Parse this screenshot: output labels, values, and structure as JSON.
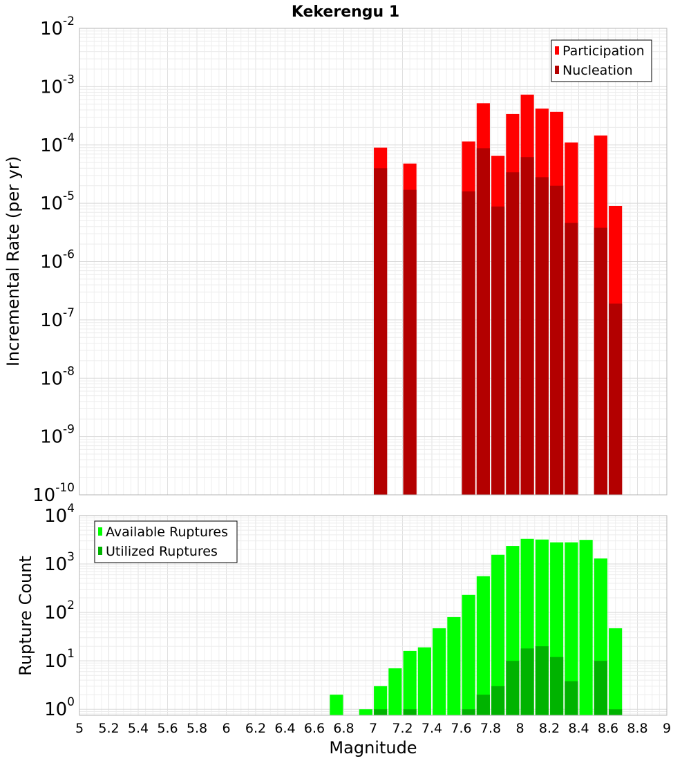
{
  "chart_data": [
    {
      "type": "bar",
      "title": "Kekerengu 1",
      "xlabel": "",
      "ylabel": "Incremental Rate (per yr)",
      "yscale": "log",
      "ylim": [
        1e-10,
        0.01
      ],
      "xlim": [
        5,
        9
      ],
      "y_tick_labels": [
        {
          "base": "10",
          "exp": "-10"
        },
        {
          "base": "10",
          "exp": "-9"
        },
        {
          "base": "10",
          "exp": "-8"
        },
        {
          "base": "10",
          "exp": "-7"
        },
        {
          "base": "10",
          "exp": "-6"
        },
        {
          "base": "10",
          "exp": "-5"
        },
        {
          "base": "10",
          "exp": "-4"
        },
        {
          "base": "10",
          "exp": "-3"
        },
        {
          "base": "10",
          "exp": "-2"
        }
      ],
      "grid": true,
      "legend_position": "top-right",
      "x": [
        7.05,
        7.25,
        7.65,
        7.75,
        7.85,
        7.95,
        8.05,
        8.15,
        8.25,
        8.35,
        8.55,
        8.65
      ],
      "series": [
        {
          "name": "Participation",
          "color": "#ff0000",
          "values": [
            9e-05,
            4.8e-05,
            0.000115,
            0.00052,
            6.5e-05,
            0.00034,
            0.00073,
            0.00042,
            0.00037,
            0.00011,
            0.000145,
            9e-06
          ]
        },
        {
          "name": "Nucleation",
          "color": "#b30000",
          "values": [
            4e-05,
            1.7e-05,
            1.6e-05,
            8.8e-05,
            8.8e-06,
            3.4e-05,
            6.2e-05,
            2.8e-05,
            2e-05,
            4.6e-06,
            3.8e-06,
            1.9e-07
          ]
        }
      ]
    },
    {
      "type": "bar",
      "title": "",
      "xlabel": "Magnitude",
      "ylabel": "Rupture Count",
      "yscale": "log",
      "ylim": [
        0.75,
        10000
      ],
      "xlim": [
        5,
        9
      ],
      "y_tick_labels": [
        {
          "base": "10",
          "exp": "0"
        },
        {
          "base": "10",
          "exp": "1"
        },
        {
          "base": "10",
          "exp": "2"
        },
        {
          "base": "10",
          "exp": "3"
        },
        {
          "base": "10",
          "exp": "4"
        }
      ],
      "x_tick_labels": [
        "5",
        "5.2",
        "5.4",
        "5.6",
        "5.8",
        "6",
        "6.2",
        "6.4",
        "6.6",
        "6.8",
        "7",
        "7.2",
        "7.4",
        "7.6",
        "7.8",
        "8",
        "8.2",
        "8.4",
        "8.6",
        "8.8",
        "9"
      ],
      "grid": true,
      "legend_position": "top-left",
      "x": [
        6.75,
        6.95,
        7.05,
        7.15,
        7.25,
        7.35,
        7.45,
        7.55,
        7.65,
        7.75,
        7.85,
        7.95,
        8.05,
        8.15,
        8.25,
        8.35,
        8.45,
        8.55,
        8.65
      ],
      "series": [
        {
          "name": "Available Ruptures",
          "color": "#00ff00",
          "values": [
            2,
            1,
            3,
            7,
            16,
            19,
            47,
            80,
            230,
            560,
            1550,
            2350,
            3300,
            3200,
            2800,
            2800,
            3150,
            1300,
            47
          ]
        },
        {
          "name": "Utilized Ruptures",
          "color": "#00b300",
          "values": [
            0,
            0,
            1,
            0,
            1,
            0,
            0,
            0,
            1,
            2,
            3,
            10,
            18,
            20,
            12,
            3.8,
            0,
            10,
            1
          ]
        }
      ]
    }
  ]
}
